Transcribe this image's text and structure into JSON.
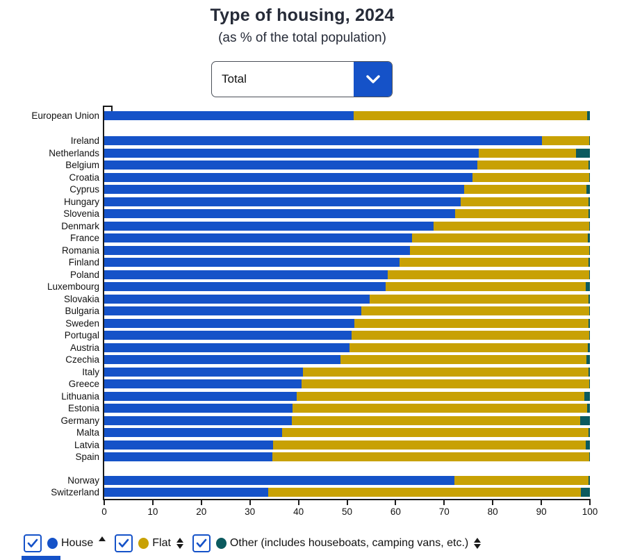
{
  "header": {
    "title": "Type of housing, 2024",
    "subtitle": "(as % of the total population)",
    "dropdown": {
      "value": "Total",
      "icon": "chevron-down-icon"
    }
  },
  "colors": {
    "accent_blue": "#1552c8",
    "house": "#1552c8",
    "flat": "#c8a104",
    "other": "#0b5a5f",
    "axis": "#1a1a1a",
    "title_text": "#262b38"
  },
  "chart_data": {
    "type": "bar",
    "stacked": true,
    "orientation": "horizontal",
    "title": "Type of housing, 2024",
    "subtitle": "(as % of the total population)",
    "unit": "% of total population",
    "xlim": [
      0,
      100
    ],
    "x_ticks": [
      0,
      10,
      20,
      30,
      40,
      50,
      60,
      70,
      80,
      90,
      100
    ],
    "series_names": [
      "House",
      "Flat",
      "Other"
    ],
    "groups": [
      {
        "name": "eu-aggregate",
        "rows": [
          {
            "label": "European Union",
            "house": 51.4,
            "flat": 48.0,
            "other": 0.6
          }
        ]
      },
      {
        "name": "eu-countries",
        "rows": [
          {
            "label": "Ireland",
            "house": 90.2,
            "flat": 9.6,
            "other": 0.2
          },
          {
            "label": "Netherlands",
            "house": 77.1,
            "flat": 20.1,
            "other": 2.8
          },
          {
            "label": "Belgium",
            "house": 76.8,
            "flat": 22.9,
            "other": 0.3
          },
          {
            "label": "Croatia",
            "house": 75.8,
            "flat": 24.1,
            "other": 0.1
          },
          {
            "label": "Cyprus",
            "house": 74.1,
            "flat": 25.2,
            "other": 0.7
          },
          {
            "label": "Hungary",
            "house": 73.4,
            "flat": 26.3,
            "other": 0.3
          },
          {
            "label": "Slovenia",
            "house": 72.2,
            "flat": 27.5,
            "other": 0.3
          },
          {
            "label": "Denmark",
            "house": 67.8,
            "flat": 32.0,
            "other": 0.2
          },
          {
            "label": "France",
            "house": 63.4,
            "flat": 36.2,
            "other": 0.4
          },
          {
            "label": "Romania",
            "house": 63.0,
            "flat": 36.8,
            "other": 0.2
          },
          {
            "label": "Finland",
            "house": 60.8,
            "flat": 38.9,
            "other": 0.3
          },
          {
            "label": "Poland",
            "house": 58.4,
            "flat": 41.5,
            "other": 0.1
          },
          {
            "label": "Luxembourg",
            "house": 58.0,
            "flat": 41.2,
            "other": 0.8
          },
          {
            "label": "Slovakia",
            "house": 54.7,
            "flat": 45.0,
            "other": 0.3
          },
          {
            "label": "Bulgaria",
            "house": 52.9,
            "flat": 47.0,
            "other": 0.1
          },
          {
            "label": "Sweden",
            "house": 51.5,
            "flat": 48.2,
            "other": 0.3
          },
          {
            "label": "Portugal",
            "house": 51.0,
            "flat": 48.9,
            "other": 0.1
          },
          {
            "label": "Austria",
            "house": 50.5,
            "flat": 49.1,
            "other": 0.4
          },
          {
            "label": "Czechia",
            "house": 48.7,
            "flat": 50.6,
            "other": 0.7
          },
          {
            "label": "Italy",
            "house": 40.9,
            "flat": 58.8,
            "other": 0.3
          },
          {
            "label": "Greece",
            "house": 40.6,
            "flat": 59.3,
            "other": 0.1
          },
          {
            "label": "Lithuania",
            "house": 39.6,
            "flat": 59.3,
            "other": 1.1
          },
          {
            "label": "Estonia",
            "house": 38.8,
            "flat": 60.6,
            "other": 0.6
          },
          {
            "label": "Germany",
            "house": 38.6,
            "flat": 59.4,
            "other": 2.0
          },
          {
            "label": "Malta",
            "house": 36.6,
            "flat": 63.1,
            "other": 0.3
          },
          {
            "label": "Latvia",
            "house": 34.8,
            "flat": 64.3,
            "other": 0.9
          },
          {
            "label": "Spain",
            "house": 34.6,
            "flat": 65.2,
            "other": 0.2
          }
        ]
      },
      {
        "name": "non-eu",
        "rows": [
          {
            "label": "Norway",
            "house": 72.1,
            "flat": 27.6,
            "other": 0.3
          },
          {
            "label": "Switzerland",
            "house": 33.8,
            "flat": 64.3,
            "other": 1.9
          }
        ]
      }
    ],
    "legend_position": "bottom",
    "grid": false
  },
  "legend": {
    "items": [
      {
        "label": "House",
        "color": "#1552c8",
        "checked": true,
        "sort_icon": "sort-ascending-icon"
      },
      {
        "label": "Flat",
        "color": "#c8a104",
        "checked": true,
        "sort_icon": "sort-both-icon"
      },
      {
        "label": "Other (includes houseboats, camping vans, etc.)",
        "color": "#0b5a5f",
        "checked": true,
        "sort_icon": "sort-both-icon"
      }
    ]
  }
}
